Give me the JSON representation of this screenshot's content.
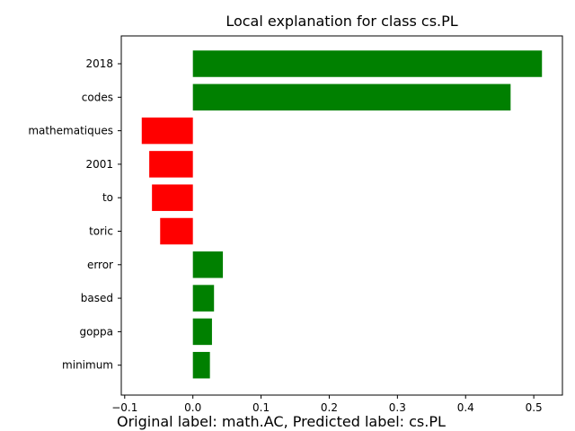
{
  "chart_data": {
    "type": "bar",
    "orientation": "horizontal",
    "title": "Local explanation for class cs.PL",
    "caption": "Original label: math.AC, Predicted label: cs.PL",
    "categories": [
      "2018",
      "codes",
      "mathematiques",
      "2001",
      "to",
      "toric",
      "error",
      "based",
      "goppa",
      "minimum"
    ],
    "values": [
      0.512,
      0.466,
      -0.075,
      -0.064,
      -0.06,
      -0.048,
      0.044,
      0.031,
      0.028,
      0.025
    ],
    "xlim": [
      -0.105,
      0.542
    ],
    "xticks": [
      -0.1,
      0.0,
      0.1,
      0.2,
      0.3,
      0.4,
      0.5
    ],
    "xtick_labels": [
      "−0.1",
      "0.0",
      "0.1",
      "0.2",
      "0.3",
      "0.4",
      "0.5"
    ],
    "colors": {
      "positive": "#008000",
      "negative": "#ff0000"
    },
    "grid": false,
    "legend": "none"
  }
}
